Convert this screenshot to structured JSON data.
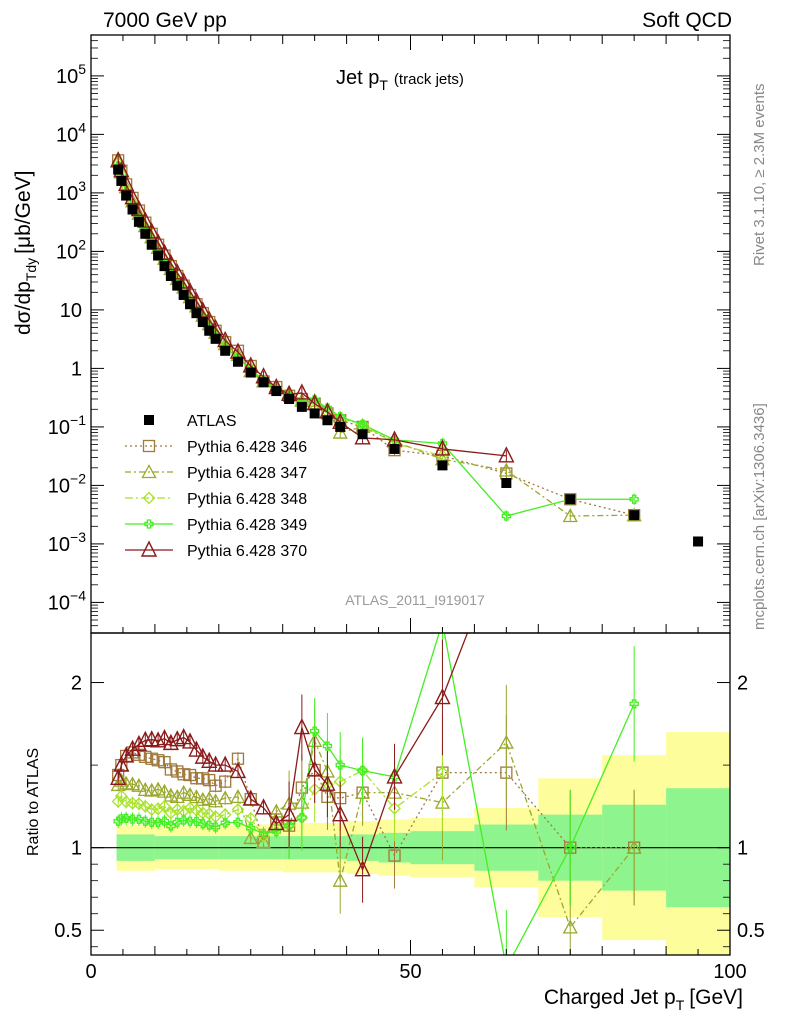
{
  "header": {
    "left": "7000 GeV pp",
    "right": "Soft QCD"
  },
  "title": {
    "main": "Jet p",
    "main_sub": "T",
    "note": "(track jets)"
  },
  "side_labels": {
    "rivet": "Rivet 3.1.10, ≥ 2.3M events",
    "mcplots": "mcplots.cern.ch [arXiv:1306.3436]"
  },
  "analysis_label": "ATLAS_2011_I919017",
  "chart_data": [
    {
      "type": "scatter",
      "panel": "main",
      "ylabel": "dσ/dp",
      "ylabel_sub": "Tdy",
      "ylabel_unit": "[μb/GeV]",
      "xlim": [
        0,
        100
      ],
      "ylim": [
        3e-05,
        500000
      ],
      "yscale": "log",
      "x_ticks": [
        0,
        50,
        100
      ],
      "y_ticks": [
        {
          "v": 0.0001,
          "label": "10",
          "sup": "−4"
        },
        {
          "v": 0.001,
          "label": "10",
          "sup": "−3"
        },
        {
          "v": 0.01,
          "label": "10",
          "sup": "−2"
        },
        {
          "v": 0.1,
          "label": "10",
          "sup": "−1"
        },
        {
          "v": 1,
          "label": "1",
          "sup": ""
        },
        {
          "v": 10,
          "label": "10",
          "sup": ""
        },
        {
          "v": 100,
          "label": "10",
          "sup": "2"
        },
        {
          "v": 1000,
          "label": "10",
          "sup": "3"
        },
        {
          "v": 10000,
          "label": "10",
          "sup": "4"
        },
        {
          "v": 100000,
          "label": "10",
          "sup": "5"
        }
      ],
      "legend_position": "middle-left",
      "data_series": {
        "name": "ATLAS",
        "color": "#000000",
        "x": [
          4.25,
          4.75,
          5.5,
          6.5,
          7.5,
          8.5,
          9.5,
          10.5,
          11.5,
          12.5,
          13.5,
          14.5,
          15.5,
          16.5,
          17.5,
          18.5,
          19.5,
          21.0,
          23.0,
          25.0,
          27.0,
          29.0,
          31.0,
          33.0,
          35.0,
          37.0,
          39.0,
          42.5,
          47.5,
          55.0,
          65.0,
          75.0,
          85.0,
          95.0
        ],
        "y": [
          2500,
          1600,
          900,
          520,
          320,
          200,
          130,
          85,
          56,
          38,
          26,
          18,
          12.5,
          8.8,
          6.2,
          4.4,
          3.2,
          2.0,
          1.3,
          0.85,
          0.58,
          0.41,
          0.3,
          0.22,
          0.17,
          0.13,
          0.1,
          0.075,
          0.042,
          0.022,
          0.011,
          0.0058,
          0.0031,
          0.0011
        ]
      },
      "series": [
        {
          "name": "Pythia 6.428 346",
          "color": "#a0793d",
          "marker": "square",
          "dash": "2,3",
          "x": [
            4.25,
            4.75,
            5.5,
            6.5,
            7.5,
            8.5,
            9.5,
            10.5,
            11.5,
            12.5,
            13.5,
            14.5,
            15.5,
            16.5,
            17.5,
            18.5,
            19.5,
            21.0,
            23.0,
            25.0,
            27.0,
            29.0,
            31.0,
            33.0,
            35.0,
            37.0,
            39.0,
            42.5,
            47.5,
            55.0,
            65.0,
            75.0,
            85.0
          ],
          "y": [
            3600,
            2400,
            1400,
            820,
            500,
            310,
            200,
            130,
            85,
            56,
            38,
            26,
            18,
            12.5,
            8.8,
            6.2,
            4.4,
            2.8,
            2.0,
            1.1,
            0.6,
            0.48,
            0.34,
            0.3,
            0.25,
            0.17,
            0.13,
            0.1,
            0.04,
            0.032,
            0.016,
            0.0058,
            0.0031
          ]
        },
        {
          "name": "Pythia 6.428 347",
          "color": "#9aa82c",
          "marker": "triangle",
          "dash": "6,3,2,3",
          "x": [
            4.25,
            4.75,
            5.5,
            6.5,
            7.5,
            8.5,
            9.5,
            10.5,
            11.5,
            12.5,
            13.5,
            14.5,
            15.5,
            16.5,
            17.5,
            18.5,
            19.5,
            21.0,
            23.0,
            25.0,
            27.0,
            29.0,
            31.0,
            33.0,
            35.0,
            37.0,
            39.0,
            42.5,
            47.5,
            55.0,
            65.0,
            75.0,
            85.0
          ],
          "y": [
            3450,
            2250,
            1250,
            720,
            440,
            270,
            175,
            115,
            75,
            50,
            34,
            24,
            16.5,
            11.5,
            8.0,
            5.7,
            4.1,
            2.6,
            1.7,
            0.9,
            0.6,
            0.5,
            0.38,
            0.28,
            0.28,
            0.19,
            0.08,
            0.1,
            0.056,
            0.028,
            0.018,
            0.003,
            0.0031
          ]
        },
        {
          "name": "Pythia 6.428 348",
          "color": "#a8e22a",
          "marker": "diamond",
          "dash": "8,3,2,3",
          "x": [
            4.25,
            4.75,
            5.5,
            6.5,
            7.5,
            8.5,
            9.5,
            10.5,
            11.5,
            12.5,
            13.5,
            14.5,
            15.5,
            16.5,
            17.5,
            18.5,
            19.5,
            21.0,
            23.0,
            25.0,
            27.0,
            29.0,
            31.0,
            33.0,
            35.0,
            37.0,
            39.0,
            42.5,
            47.5,
            55.0
          ],
          "y": [
            3200,
            2100,
            1150,
            660,
            405,
            250,
            160,
            105,
            70,
            46,
            32,
            22,
            15.5,
            10.8,
            7.5,
            5.3,
            3.8,
            2.4,
            1.6,
            1.0,
            0.62,
            0.46,
            0.34,
            0.26,
            0.23,
            0.18,
            0.14,
            0.11,
            0.052,
            0.032
          ]
        },
        {
          "name": "Pythia 6.428 349",
          "color": "#44ee22",
          "marker": "cross",
          "dash": "",
          "x": [
            4.25,
            4.75,
            5.5,
            6.5,
            7.5,
            8.5,
            9.5,
            10.5,
            11.5,
            12.5,
            13.5,
            14.5,
            15.5,
            16.5,
            17.5,
            18.5,
            19.5,
            21.0,
            23.0,
            25.0,
            27.0,
            29.0,
            31.0,
            33.0,
            35.0,
            37.0,
            39.0,
            42.5,
            47.5,
            55.0,
            65.0,
            75.0,
            85.0
          ],
          "y": [
            2900,
            1880,
            1060,
            610,
            375,
            232,
            150,
            98,
            65,
            43,
            30,
            21,
            14.5,
            10.2,
            7.1,
            5.0,
            3.6,
            2.3,
            1.5,
            0.95,
            0.63,
            0.45,
            0.34,
            0.26,
            0.29,
            0.21,
            0.15,
            0.11,
            0.06,
            0.052,
            0.003,
            0.0058,
            0.0058
          ]
        },
        {
          "name": "Pythia 6.428 370",
          "color": "#8b1a1a",
          "marker": "triangle-open-large",
          "dash": "",
          "x": [
            4.25,
            4.75,
            5.5,
            6.5,
            7.5,
            8.5,
            9.5,
            10.5,
            11.5,
            12.5,
            13.5,
            14.5,
            15.5,
            16.5,
            17.5,
            18.5,
            19.5,
            21.0,
            23.0,
            25.0,
            27.0,
            29.0,
            31.0,
            33.0,
            35.0,
            37.0,
            39.0,
            42.5,
            47.5,
            55.0,
            65.0
          ],
          "y": [
            3550,
            2400,
            1400,
            830,
            520,
            330,
            215,
            140,
            93,
            62,
            43,
            30,
            20.5,
            14.0,
            9.6,
            6.7,
            4.8,
            3.0,
            1.9,
            1.1,
            0.72,
            0.47,
            0.36,
            0.38,
            0.25,
            0.18,
            0.12,
            0.065,
            0.06,
            0.042,
            0.032
          ]
        }
      ]
    },
    {
      "type": "scatter",
      "panel": "ratio",
      "ylabel": "Ratio to ATLAS",
      "xlabel": "Charged Jet p",
      "xlabel_sub": "T",
      "xlabel_unit": "[GeV]",
      "xlim": [
        0,
        100
      ],
      "ylim": [
        0.35,
        2.3
      ],
      "x_ticks": [
        0,
        50,
        100
      ],
      "y_ticks": [
        0.5,
        1,
        2
      ],
      "band_bins": [
        {
          "x0": 4,
          "x1": 10,
          "inner": 0.08,
          "outer": 0.14
        },
        {
          "x0": 10,
          "x1": 20,
          "inner": 0.07,
          "outer": 0.13
        },
        {
          "x0": 20,
          "x1": 30,
          "inner": 0.07,
          "outer": 0.14
        },
        {
          "x0": 30,
          "x1": 40,
          "inner": 0.07,
          "outer": 0.15
        },
        {
          "x0": 40,
          "x1": 45,
          "inner": 0.08,
          "outer": 0.16
        },
        {
          "x0": 45,
          "x1": 50,
          "inner": 0.09,
          "outer": 0.17
        },
        {
          "x0": 50,
          "x1": 60,
          "inner": 0.1,
          "outer": 0.18
        },
        {
          "x0": 60,
          "x1": 70,
          "inner": 0.14,
          "outer": 0.24
        },
        {
          "x0": 70,
          "x1": 80,
          "inner": 0.2,
          "outer": 0.42
        },
        {
          "x0": 80,
          "x1": 90,
          "inner": 0.26,
          "outer": 0.56
        },
        {
          "x0": 90,
          "x1": 100,
          "inner": 0.36,
          "outer": 0.7
        }
      ]
    }
  ],
  "colors": {
    "band_inner": "#8ef58e",
    "band_outer": "#fdfd9c"
  }
}
